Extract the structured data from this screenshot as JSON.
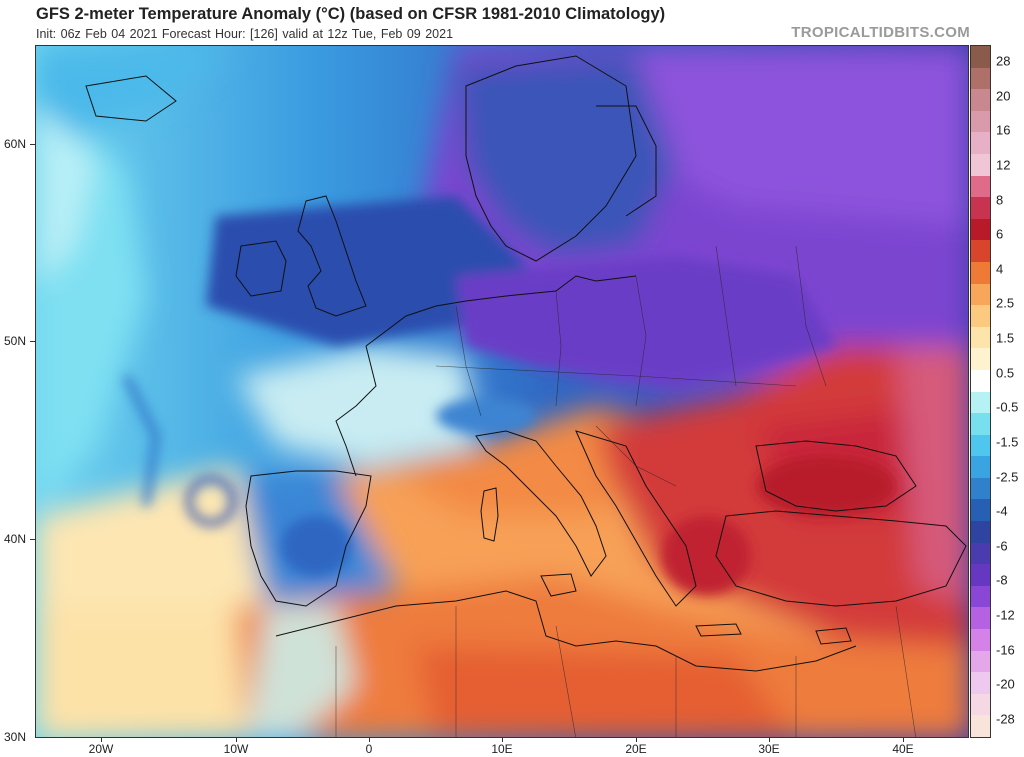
{
  "header": {
    "title": "GFS 2-meter Temperature Anomaly (°C) (based on CFSR 1981-2010 Climatology)",
    "subtitle": "Init: 06z Feb 04 2021   Forecast Hour: [126]   valid at 12z Tue, Feb 09 2021",
    "brand": "TROPICALTIDBITS.COM"
  },
  "map": {
    "lat_labels": [
      "60N",
      "50N",
      "40N",
      "30N"
    ],
    "lon_labels": [
      "20W",
      "10W",
      "0",
      "10E",
      "20E",
      "30E",
      "40E"
    ]
  },
  "colorbar": {
    "labels": [
      "28",
      "20",
      "16",
      "12",
      "8",
      "6",
      "4",
      "2.5",
      "1.5",
      "0.5",
      "-0.5",
      "-1.5",
      "-2.5",
      "-4",
      "-6",
      "-8",
      "-12",
      "-16",
      "-20",
      "-28"
    ],
    "colors": [
      "#8a5a4a",
      "#b0706a",
      "#c9878f",
      "#d99aac",
      "#e8b0c6",
      "#f0c6d6",
      "#e06a8a",
      "#c83450",
      "#b81a2a",
      "#d8452c",
      "#ef7a36",
      "#f8a659",
      "#fbc97f",
      "#fde4ab",
      "#fff2cf",
      "#ffffff",
      "#b6f2f4",
      "#78dfef",
      "#4ec6ee",
      "#3aa3e2",
      "#3080cc",
      "#275fb4",
      "#2f44a0",
      "#4a3cae",
      "#6638c2",
      "#8a46d4",
      "#b660e2",
      "#d482e8",
      "#e4a8ea",
      "#efc8ef",
      "#f6d8e4",
      "#f8e4da"
    ],
    "legend": {
      "warm_top": "#8a5a4a",
      "cold_bottom": "#f8e4da"
    }
  }
}
